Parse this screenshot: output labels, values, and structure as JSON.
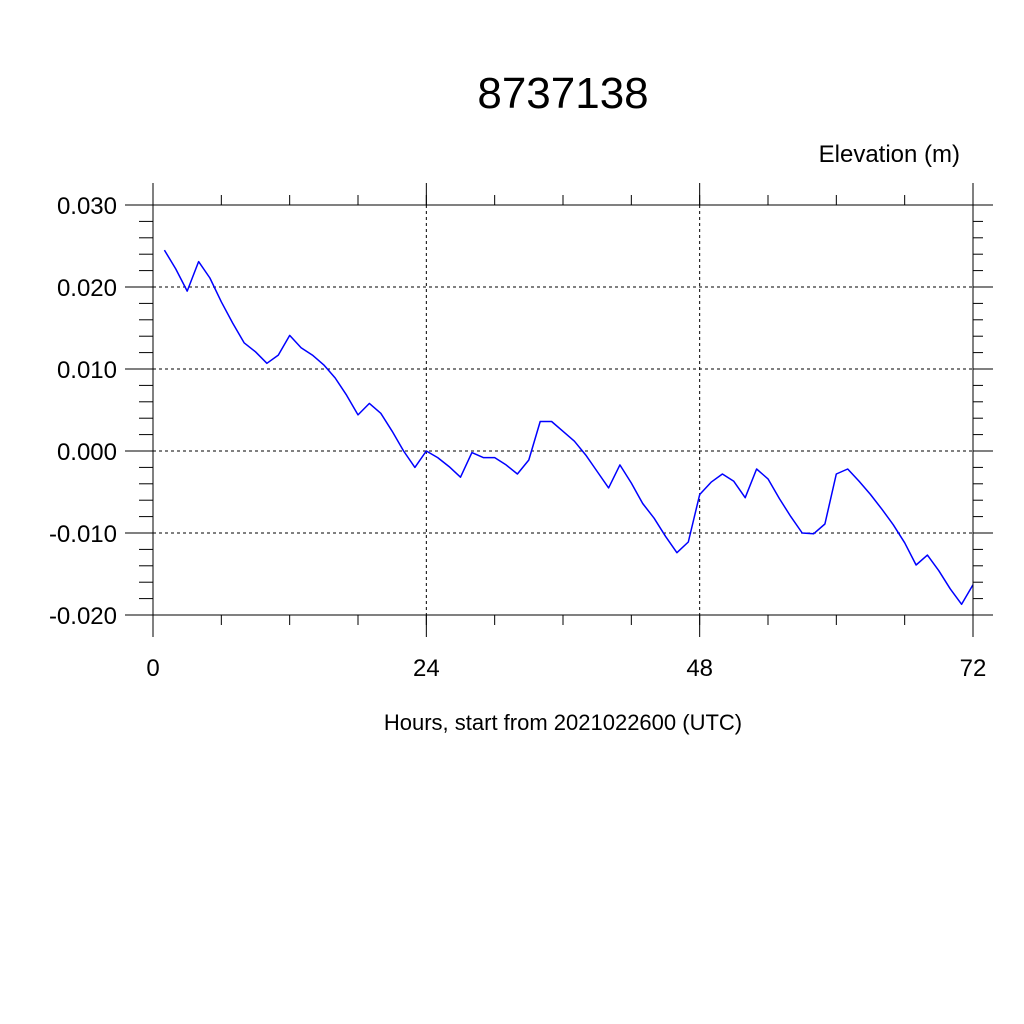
{
  "chart_data": {
    "type": "line",
    "title": "8737138",
    "ylabel": "Elevation (m)",
    "xlabel": "Hours, start from 2021022600 (UTC)",
    "xlim": [
      0,
      72
    ],
    "ylim": [
      -0.02,
      0.03
    ],
    "x_ticks": [
      0,
      24,
      48,
      72
    ],
    "x_tick_labels": [
      "0",
      "24",
      "48",
      "72"
    ],
    "y_ticks": [
      0.03,
      0.02,
      0.01,
      0.0,
      -0.01,
      -0.02
    ],
    "y_tick_labels": [
      "0.030",
      "0.020",
      "0.010",
      "0.000",
      "-0.010",
      "-0.020"
    ],
    "grid": true,
    "series": [
      {
        "color": "#0000ff",
        "x": [
          1,
          2,
          3,
          4,
          5,
          6,
          7,
          8,
          9,
          10,
          11,
          12,
          13,
          14,
          15,
          16,
          17,
          18,
          19,
          20,
          21,
          22,
          23,
          24,
          25,
          26,
          27,
          28,
          29,
          30,
          31,
          32,
          33,
          34,
          35,
          36,
          37,
          38,
          39,
          40,
          41,
          42,
          43,
          44,
          45,
          46,
          47,
          48,
          49,
          50,
          51,
          52,
          53,
          54,
          55,
          56,
          57,
          58,
          59,
          60,
          61,
          62,
          63,
          64,
          65,
          66,
          67,
          68,
          69,
          70,
          71,
          72
        ],
        "values": [
          0.0245,
          0.0222,
          0.0195,
          0.0231,
          0.0211,
          0.0182,
          0.0156,
          0.0132,
          0.0121,
          0.0107,
          0.0117,
          0.0141,
          0.0126,
          0.0117,
          0.0105,
          0.0089,
          0.0068,
          0.0044,
          0.0058,
          0.0046,
          0.0024,
          0.0,
          -0.002,
          0.0,
          -0.0008,
          -0.0019,
          -0.0032,
          -0.0002,
          -0.0008,
          -0.0008,
          -0.0017,
          -0.0028,
          -0.0011,
          0.0036,
          0.0036,
          0.0024,
          0.0012,
          -0.0005,
          -0.0025,
          -0.0045,
          -0.0017,
          -0.0039,
          -0.0064,
          -0.0082,
          -0.0104,
          -0.0124,
          -0.0111,
          -0.0053,
          -0.0038,
          -0.0028,
          -0.0037,
          -0.0057,
          -0.0022,
          -0.0034,
          -0.0058,
          -0.008,
          -0.01,
          -0.0101,
          -0.0089,
          -0.0028,
          -0.0022,
          -0.0037,
          -0.0053,
          -0.0071,
          -0.009,
          -0.0112,
          -0.0139,
          -0.0127,
          -0.0146,
          -0.0168,
          -0.0187,
          -0.0163
        ]
      }
    ]
  }
}
